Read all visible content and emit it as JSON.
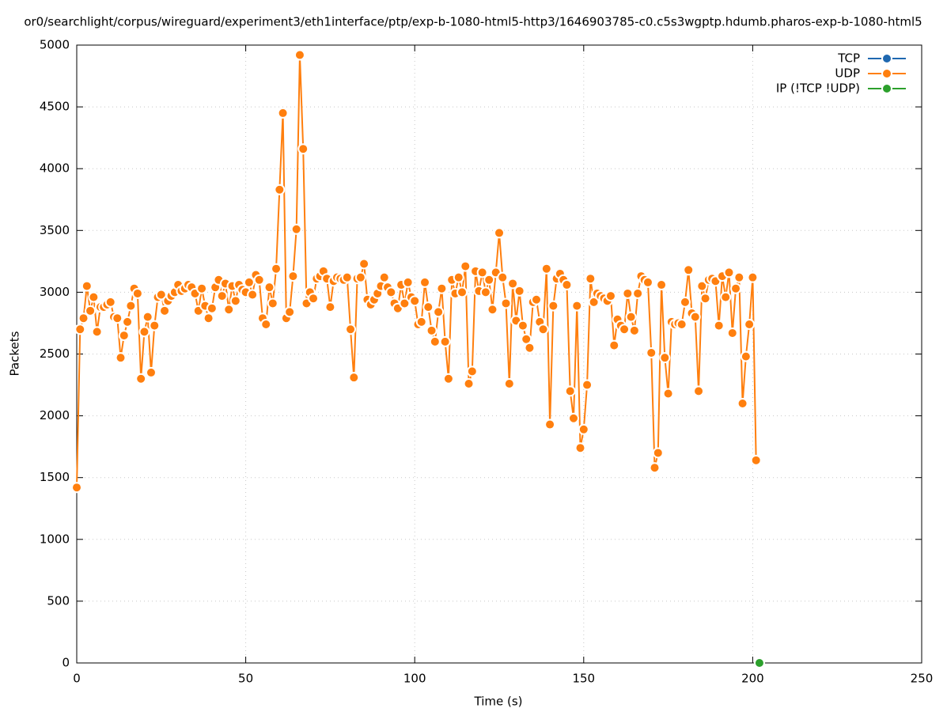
{
  "chart_data": {
    "type": "line",
    "title": "or0/searchlight/corpus/wireguard/experiment3/eth1interface/ptp/exp-b-1080-html5-http3/1646903785-c0.c5s3wgptp.hdumb.pharos-exp-b-1080-html5",
    "xlabel": "Time (s)",
    "ylabel": "Packets",
    "xlim": [
      0,
      250
    ],
    "xticks": [
      0,
      50,
      100,
      150,
      200,
      250
    ],
    "ylim": [
      0,
      5000
    ],
    "yticks": [
      0,
      500,
      1000,
      1500,
      2000,
      2500,
      3000,
      3500,
      4000,
      4500,
      5000
    ],
    "grid": true,
    "legend": "top-right",
    "series": [
      {
        "name": "TCP",
        "color": "#1f68b0",
        "x": [],
        "values": []
      },
      {
        "name": "UDP",
        "color": "#ff7f0e",
        "x": [
          0,
          1,
          2,
          3,
          4,
          5,
          6,
          7,
          8,
          9,
          10,
          11,
          12,
          13,
          14,
          15,
          16,
          17,
          18,
          19,
          20,
          21,
          22,
          23,
          24,
          25,
          26,
          27,
          28,
          29,
          30,
          31,
          32,
          33,
          34,
          35,
          36,
          37,
          38,
          39,
          40,
          41,
          42,
          43,
          44,
          45,
          46,
          47,
          48,
          49,
          50,
          51,
          52,
          53,
          54,
          55,
          56,
          57,
          58,
          59,
          60,
          61,
          62,
          63,
          64,
          65,
          66,
          67,
          68,
          69,
          70,
          71,
          72,
          73,
          74,
          75,
          76,
          77,
          78,
          79,
          80,
          81,
          82,
          83,
          84,
          85,
          86,
          87,
          88,
          89,
          90,
          91,
          92,
          93,
          94,
          95,
          96,
          97,
          98,
          99,
          100,
          101,
          102,
          103,
          104,
          105,
          106,
          107,
          108,
          109,
          110,
          111,
          112,
          113,
          114,
          115,
          116,
          117,
          118,
          119,
          120,
          121,
          122,
          123,
          124,
          125,
          126,
          127,
          128,
          129,
          130,
          131,
          132,
          133,
          134,
          135,
          136,
          137,
          138,
          139,
          140,
          141,
          142,
          143,
          144,
          145,
          146,
          147,
          148,
          149,
          150,
          151,
          152,
          153,
          154,
          155,
          156,
          157,
          158,
          159,
          160,
          161,
          162,
          163,
          164,
          165,
          166,
          167,
          168,
          169,
          170,
          171,
          172,
          173,
          174,
          175,
          176,
          177,
          178,
          179,
          180,
          181,
          182,
          183,
          184,
          185,
          186,
          187,
          188,
          189,
          190,
          191,
          192,
          193,
          194,
          195,
          196,
          197,
          198,
          199,
          200,
          201
        ],
        "values": [
          1420,
          2700,
          2790,
          3050,
          2850,
          2960,
          2680,
          2880,
          2880,
          2900,
          2920,
          2800,
          2790,
          2470,
          2650,
          2760,
          2890,
          3030,
          2990,
          2300,
          2680,
          2800,
          2350,
          2730,
          2960,
          2980,
          2850,
          2930,
          2970,
          3000,
          3060,
          3010,
          3030,
          3060,
          3040,
          2990,
          2850,
          3030,
          2890,
          2790,
          2870,
          3040,
          3100,
          2970,
          3070,
          2860,
          3050,
          2930,
          3060,
          3020,
          3000,
          3080,
          2980,
          3140,
          3100,
          2790,
          2740,
          3040,
          2910,
          3190,
          3830,
          4450,
          2790,
          2840,
          3130,
          3510,
          4920,
          4160,
          2910,
          3000,
          2950,
          3110,
          3130,
          3170,
          3110,
          2880,
          3090,
          3120,
          3110,
          3100,
          3120,
          2700,
          2310,
          3110,
          3120,
          3230,
          2940,
          2900,
          2940,
          2990,
          3050,
          3120,
          3040,
          3000,
          2910,
          2870,
          3060,
          2910,
          3080,
          2960,
          2930,
          2740,
          2760,
          3080,
          2880,
          2690,
          2600,
          2840,
          3030,
          2600,
          2300,
          3100,
          2990,
          3120,
          3000,
          3210,
          2260,
          2360,
          3170,
          3010,
          3160,
          3000,
          3100,
          2860,
          3160,
          3480,
          3120,
          2910,
          2260,
          3070,
          2770,
          3010,
          2730,
          2620,
          2550,
          2920,
          2940,
          2760,
          2700,
          3190,
          1930,
          2890,
          3110,
          3150,
          3100,
          3060,
          2200,
          1980,
          2890,
          1740,
          1890,
          2250,
          3110,
          2920,
          2990,
          2970,
          2950,
          2930,
          2970,
          2570,
          2780,
          2730,
          2700,
          2990,
          2800,
          2690,
          2990,
          3130,
          3100,
          3080,
          2510,
          1580,
          1700,
          3060,
          2470,
          2180,
          2760,
          2740,
          2750,
          2740,
          2920,
          3180,
          2830,
          2800,
          2200,
          3050,
          2950,
          3100,
          3110,
          3090,
          2730,
          3130,
          2960,
          3160,
          2670,
          3030,
          3120,
          2100,
          2480,
          2740,
          3120,
          1640
        ]
      },
      {
        "name": "IP (!TCP  !UDP)",
        "color": "#2ca02c",
        "x": [
          202
        ],
        "values": [
          0
        ]
      }
    ]
  }
}
